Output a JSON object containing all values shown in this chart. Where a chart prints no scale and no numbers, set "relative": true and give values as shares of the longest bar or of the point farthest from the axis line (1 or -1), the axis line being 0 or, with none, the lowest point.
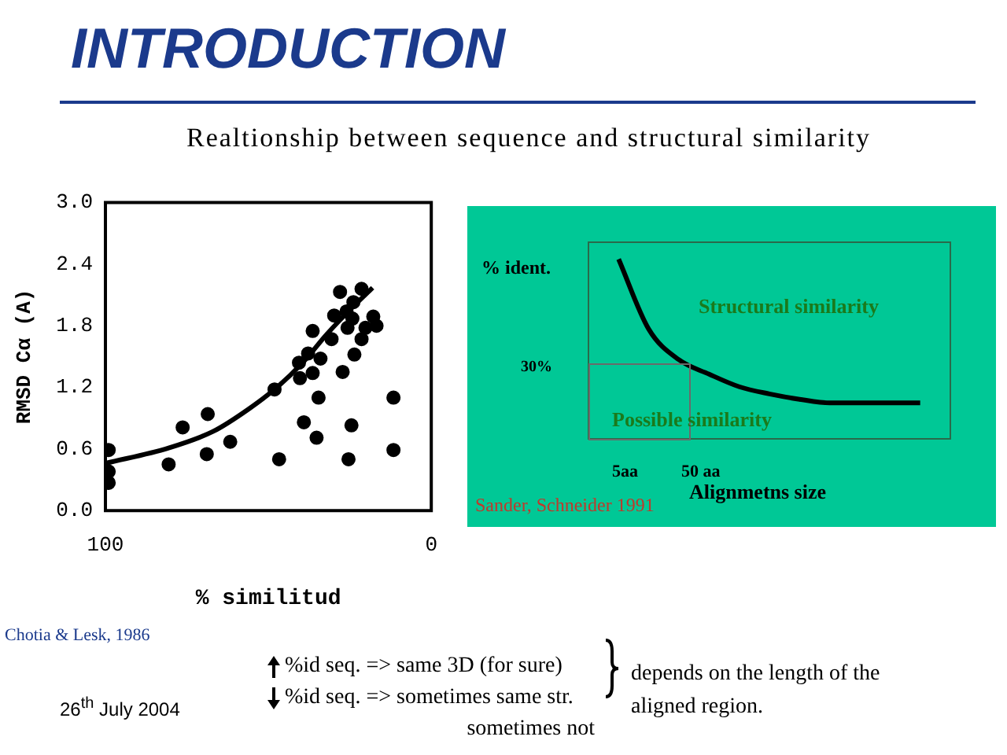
{
  "chart_data": [
    {
      "type": "scatter",
      "title": "INTRODUCTION",
      "subtitle": "Realtionship between sequence and structural similarity",
      "xlabel": "% similitud",
      "ylabel": "RMSD Cα (A)",
      "xlim": [
        100,
        0
      ],
      "xticks": [
        100,
        0
      ],
      "ylim": [
        0,
        3
      ],
      "yticks": [
        {
          "value": 0,
          "label": "0.0"
        },
        0.6,
        1.2,
        1.8,
        2.4,
        {
          "value": 3,
          "label": "3.0"
        }
      ],
      "grid": false,
      "legend": false,
      "marker": "circle",
      "series": [
        {
          "type": "scatter",
          "color": "#000000",
          "x": [
            99,
            99,
            99,
            80.6,
            76.3,
            68.9,
            68.6,
            61.7,
            46.7,
            48.1,
            40.3,
            40.6,
            39.1,
            37.8,
            36.4,
            36.4,
            34.6,
            34.0,
            35.2,
            30.6,
            29.8,
            28.0,
            27.2,
            26.0,
            25.7,
            25.4,
            24.5,
            24.2,
            23.6,
            23.9,
            21.4,
            21.4,
            20.2,
            17.8,
            16.8,
            11.6,
            11.6
          ],
          "values": [
            0.59,
            0.38,
            0.27,
            0.45,
            0.81,
            0.55,
            0.94,
            0.67,
            0.5,
            1.18,
            1.29,
            1.44,
            0.86,
            1.53,
            1.75,
            1.34,
            1.1,
            1.48,
            0.71,
            1.67,
            1.9,
            2.13,
            1.35,
            1.94,
            1.78,
            0.5,
            0.83,
            1.87,
            1.52,
            2.03,
            1.67,
            2.16,
            1.78,
            1.89,
            1.8,
            1.1,
            0.59
          ]
        },
        {
          "type": "line",
          "color": "#000000",
          "marker": "none",
          "x": [
            100,
            80.6,
            67,
            56,
            47,
            39.5,
            32,
            24.2,
            18
          ],
          "values": [
            0.46,
            0.61,
            0.77,
            0.99,
            1.21,
            1.44,
            1.72,
            1.98,
            2.17
          ]
        }
      ],
      "annotations": [
        "Chotia & Lesk, 1986",
        "26$^{th}$ July 2004",
        "%id seq. => same 3D (for sure)",
        "%id seq. => sometimes same str. sometimes not",
        "depends on the length of the aligned region."
      ]
    },
    {
      "type": "line",
      "relative": true,
      "ylabel": "% ident.",
      "xlabel": "Alignmetns size",
      "legend": false,
      "marker": "none",
      "categories": [
        null,
        null,
        null,
        null,
        null,
        null,
        null,
        null,
        null,
        null,
        null,
        null,
        null
      ],
      "series": [
        {
          "color": "#000000",
          "values": [
            null,
            1.0,
            0.61,
            0.44,
            0.36,
            0.29,
            0.25,
            0.22,
            0.2,
            0.2,
            0.2,
            0.2,
            null
          ]
        }
      ],
      "annotations": [
        "30%",
        "5aa",
        "50 aa",
        "Structural similarity",
        "Possible similarity",
        "Sander, Schneider 1991"
      ]
    }
  ]
}
